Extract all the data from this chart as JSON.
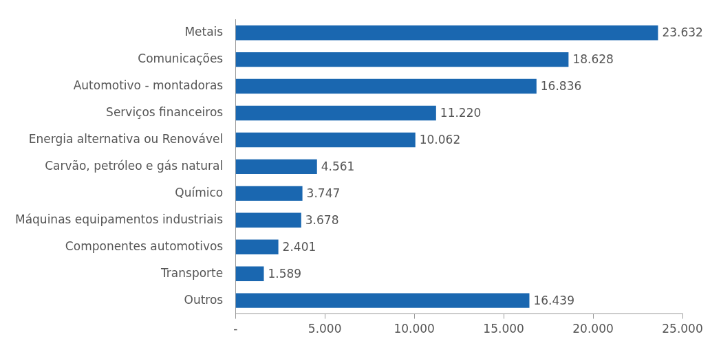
{
  "chart_data": {
    "type": "bar",
    "orientation": "horizontal",
    "categories": [
      "Metais",
      "Comunicações",
      "Automotivo - montadoras",
      "Serviços financeiros",
      "Energia alternativa ou Renovável",
      "Carvão, petróleo e gás natural",
      "Químico",
      "Máquinas equipamentos industriais",
      "Componentes automotivos",
      "Transporte",
      "Outros"
    ],
    "values": [
      23632,
      18628,
      16836,
      11220,
      10062,
      4561,
      3747,
      3678,
      2401,
      1589,
      16439
    ],
    "color": "#1a67b0",
    "xlim": [
      0,
      25000
    ],
    "xticks": [
      {
        "value": 0,
        "label": "-"
      },
      {
        "value": 5000,
        "label": "5.000"
      },
      {
        "value": 10000,
        "label": "10.000"
      },
      {
        "value": 15000,
        "label": "15.000"
      },
      {
        "value": 20000,
        "label": "20.000"
      },
      {
        "value": 25000,
        "label": "25.000"
      }
    ],
    "value_labels": [
      "23.632",
      "18.628",
      "16.836",
      "11.220",
      "10.062",
      "4.561",
      "3.747",
      "3.678",
      "2.401",
      "1.589",
      "16.439"
    ],
    "grid": false,
    "legend": false
  }
}
